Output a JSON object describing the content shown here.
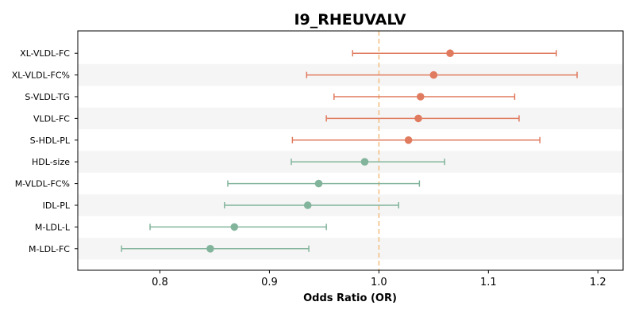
{
  "chart_data": {
    "type": "forest",
    "title": "I9_RHEUVALV",
    "xlabel": "Odds Ratio (OR)",
    "xlim": [
      0.725,
      1.223
    ],
    "xticks": [
      0.8,
      0.9,
      1.0,
      1.1,
      1.2
    ],
    "xtick_labels": [
      "0.8",
      "0.9",
      "1.0",
      "1.1",
      "1.2"
    ],
    "reference_line": 1.0,
    "reference_color": "#f3c185",
    "up_color": "#e07b5f",
    "down_color": "#82b49c",
    "stripe_color": "#f5f5f5",
    "rows": [
      {
        "label": "XL-VLDL-FC",
        "or": 1.065,
        "lo": 0.976,
        "hi": 1.162
      },
      {
        "label": "XL-VLDL-FC%",
        "or": 1.05,
        "lo": 0.934,
        "hi": 1.181
      },
      {
        "label": "S-VLDL-TG",
        "or": 1.038,
        "lo": 0.959,
        "hi": 1.124
      },
      {
        "label": "VLDL-FC",
        "or": 1.036,
        "lo": 0.952,
        "hi": 1.128
      },
      {
        "label": "S-HDL-PL",
        "or": 1.027,
        "lo": 0.921,
        "hi": 1.147
      },
      {
        "label": "HDL-size",
        "or": 0.987,
        "lo": 0.92,
        "hi": 1.06
      },
      {
        "label": "M-VLDL-FC%",
        "or": 0.945,
        "lo": 0.862,
        "hi": 1.037
      },
      {
        "label": "IDL-PL",
        "or": 0.935,
        "lo": 0.859,
        "hi": 1.018
      },
      {
        "label": "M-LDL-L",
        "or": 0.868,
        "lo": 0.791,
        "hi": 0.952
      },
      {
        "label": "M-LDL-FC",
        "or": 0.846,
        "lo": 0.765,
        "hi": 0.936
      }
    ]
  }
}
